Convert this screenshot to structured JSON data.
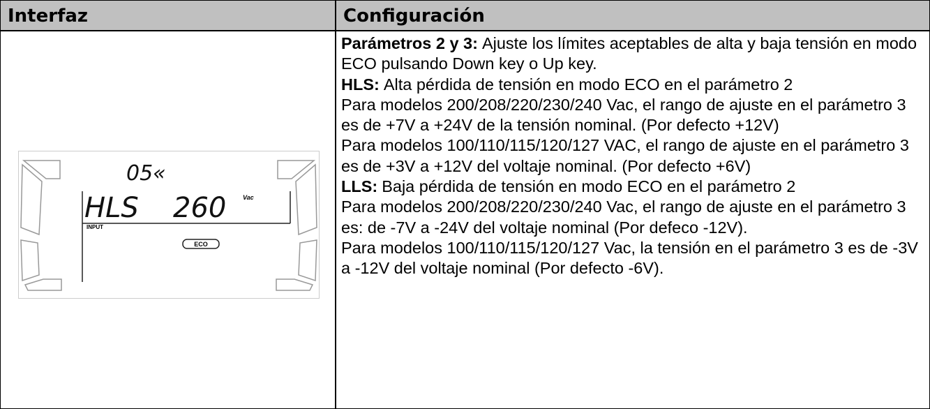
{
  "header": {
    "left": "Interfaz",
    "right": "Configuración"
  },
  "lcd": {
    "code": "05«",
    "mode": "HLS",
    "value": "260",
    "unit": "Vac",
    "input": "INPUT",
    "eco": "ECO"
  },
  "paragraphs": [
    {
      "label": "Parámetros 2 y 3:",
      "text": "Ajuste los límites aceptables de alta y baja tensión en modo ECO pulsando Down key o Up key."
    },
    {
      "label": "HLS:",
      "text": "Alta pérdida de tensión en modo ECO en el parámetro 2"
    },
    {
      "text": "Para modelos 200/208/220/230/240 Vac, el rango de ajuste en el parámetro 3 es de +7V a +24V de la tensión nominal. (Por defecto +12V)"
    },
    {
      "text": "Para modelos 100/110/115/120/127 VAC, el rango de ajuste en el parámetro 3 es de +3V a +12V del voltaje nominal. (Por defecto +6V)"
    },
    {
      "label": "LLS:",
      "text": "Baja pérdida de tensión en modo ECO en el parámetro 2"
    },
    {
      "text": "Para modelos 200/208/220/230/240 Vac, el rango de ajuste en el parámetro 3 es: de -7V a -24V del voltaje nominal (Por defeco -12V)."
    },
    {
      "text": "Para modelos 100/110/115/120/127 Vac, la tensión en el parámetro 3 es de -3V a -12V del voltaje nominal (Por defecto -6V)."
    }
  ]
}
